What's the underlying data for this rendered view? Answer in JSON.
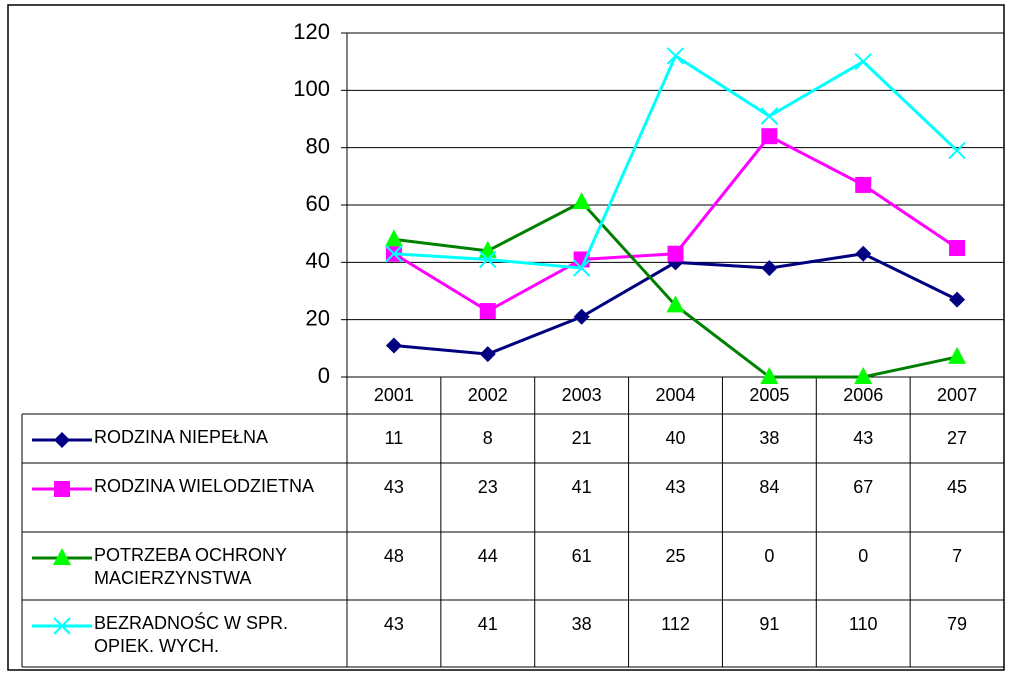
{
  "chart_data": {
    "type": "line",
    "categories": [
      "2001",
      "2002",
      "2003",
      "2004",
      "2005",
      "2006",
      "2007"
    ],
    "series": [
      {
        "name": " RODZINA NIEPEŁNA",
        "color": "#000080",
        "marker": "diamond",
        "marker_color": "#000080",
        "values": [
          11,
          8,
          21,
          40,
          38,
          43,
          27
        ]
      },
      {
        "name": "RODZINA WIELODZIETNA",
        "color": "#ff00ff",
        "marker": "square",
        "marker_color": "#ff00ff",
        "values": [
          43,
          23,
          41,
          43,
          84,
          67,
          45
        ]
      },
      {
        "name": "POTRZEBA OCHRONY MACIERZYNSTWA",
        "color": "#008000",
        "marker": "triangle",
        "marker_color": "#00ff00",
        "values": [
          48,
          44,
          61,
          25,
          0,
          0,
          7
        ]
      },
      {
        "name": "BEZRADNOŚC W SPR. OPIEK. WYCH.",
        "color": "#00ffff",
        "marker": "x",
        "marker_color": "#00ffff",
        "values": [
          43,
          41,
          38,
          112,
          91,
          110,
          79
        ]
      }
    ],
    "ylim": [
      0,
      120
    ],
    "yticks": [
      0,
      20,
      40,
      60,
      80,
      100,
      120
    ],
    "grid": true
  }
}
